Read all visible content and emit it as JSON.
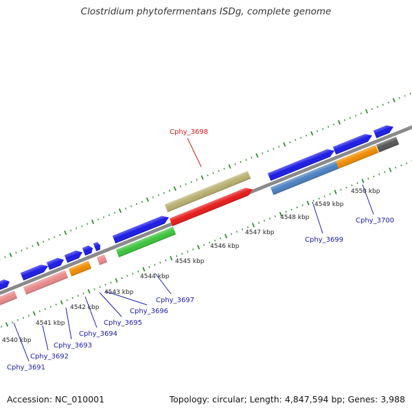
{
  "title": "Clostridium phytofermentans ISDg, complete genome",
  "footer": {
    "accession": "Accession: NC_010001",
    "summary": "Topology: circular; Length: 4,847,594 bp; Genes: 3,988"
  },
  "colors": {
    "backbone": "#8a8a8a",
    "ticks": "#2e8b2e",
    "gene_blue": "#1a1ae6",
    "gene_pink": "#e88a8a",
    "gene_orange": "#f08c00",
    "gene_green": "#3cc43c",
    "gene_olive": "#b8b070",
    "gene_red": "#e61a1a",
    "gene_steelblue": "#4a7fc0",
    "gene_gray": "#555555",
    "label_blue": "#1a1aa8",
    "label_red": "#cc1a1a"
  },
  "ticks": [
    "4540 kbp",
    "4541 kbp",
    "4542 kbp",
    "4543 kbp",
    "4544 kbp",
    "4545 kbp",
    "4546 kbp",
    "4547 kbp",
    "4548 kbp",
    "4549 kbp",
    "4550 kbp"
  ],
  "gene_labels": [
    {
      "id": "cphy_3691",
      "text": "Cphy_3691",
      "color": "label_blue"
    },
    {
      "id": "cphy_3692",
      "text": "Cphy_3692",
      "color": "label_blue"
    },
    {
      "id": "cphy_3693",
      "text": "Cphy_3693",
      "color": "label_blue"
    },
    {
      "id": "cphy_3694",
      "text": "Cphy_3694",
      "color": "label_blue"
    },
    {
      "id": "cphy_3695",
      "text": "Cphy_3695",
      "color": "label_blue"
    },
    {
      "id": "cphy_3696",
      "text": "Cphy_3696",
      "color": "label_blue"
    },
    {
      "id": "cphy_3697",
      "text": "Cphy_3697",
      "color": "label_blue"
    },
    {
      "id": "cphy_3698",
      "text": "Cphy_3698",
      "color": "label_red"
    },
    {
      "id": "cphy_3699",
      "text": "Cphy_3699",
      "color": "label_blue"
    },
    {
      "id": "cphy_3700",
      "text": "Cphy_3700",
      "color": "label_blue"
    }
  ]
}
